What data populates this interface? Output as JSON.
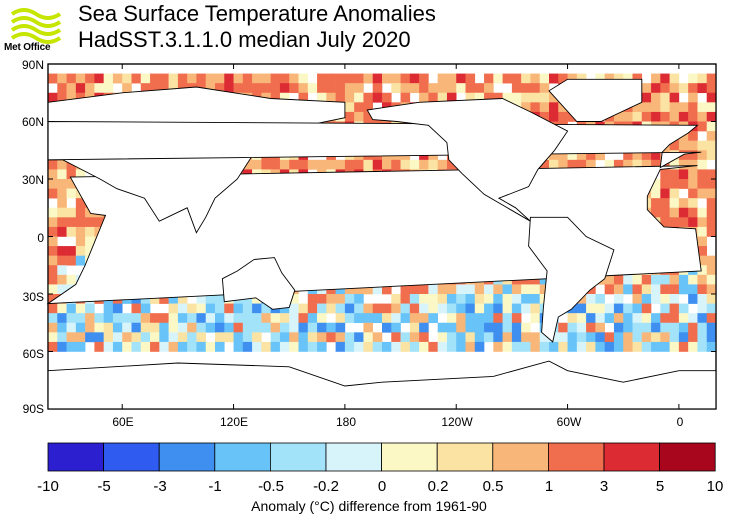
{
  "header": {
    "logo_text": "Met Office",
    "title": "Sea Surface Temperature Anomalies",
    "subtitle": "HadSST.3.1.1.0 median July 2020"
  },
  "map": {
    "lat_labels": [
      "90N",
      "60N",
      "30N",
      "0",
      "30S",
      "60S",
      "90S"
    ],
    "lon_labels": [
      "60E",
      "120E",
      "180",
      "120W",
      "60W",
      "0"
    ]
  },
  "colorbar": {
    "ticks": [
      "-10",
      "-5",
      "-3",
      "-1",
      "-0.5",
      "-0.2",
      "0",
      "0.2",
      "0.5",
      "1",
      "3",
      "5",
      "10"
    ],
    "colors": [
      "#2b1fd0",
      "#2f5bf0",
      "#3f8ff0",
      "#68c3f8",
      "#a3e3fa",
      "#d8f4fb",
      "#fbf8c6",
      "#fbe3a3",
      "#f9b679",
      "#f06d4d",
      "#dc2b33",
      "#a8061d"
    ],
    "caption": "Anomaly (°C) difference from 1961-90"
  },
  "chart_data": {
    "type": "heatmap",
    "title": "Sea Surface Temperature Anomalies",
    "subtitle": "HadSST.3.1.1.0 median July 2020",
    "xlabel": "",
    "ylabel": "",
    "lat_ticks": [
      "90N",
      "60N",
      "30N",
      "0",
      "30S",
      "60S",
      "90S"
    ],
    "lon_ticks": [
      "60E",
      "120E",
      "180",
      "120W",
      "60W",
      "0"
    ],
    "legend_bins": [
      "-10",
      "-5",
      "-3",
      "-1",
      "-0.5",
      "-0.2",
      "0",
      "0.2",
      "0.5",
      "1",
      "3",
      "5",
      "10"
    ],
    "legend_caption": "Anomaly (°C) difference from 1961-90"
  }
}
